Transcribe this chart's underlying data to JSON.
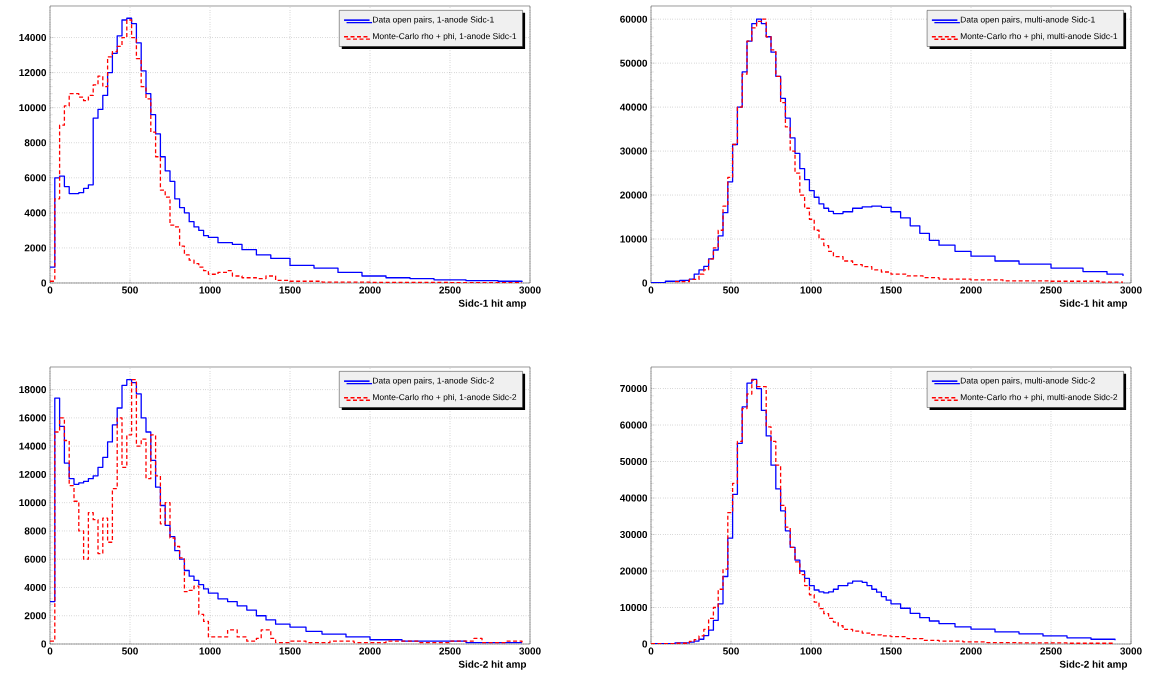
{
  "chart_data": [
    {
      "type": "step",
      "xlabel": "Sidc-1 hit amp",
      "xlim": [
        0,
        3000
      ],
      "ylim": [
        0,
        15800
      ],
      "xticks": [
        0,
        500,
        1000,
        1500,
        2000,
        2500,
        3000
      ],
      "yticks": [
        0,
        2000,
        4000,
        6000,
        8000,
        10000,
        12000,
        14000
      ],
      "grid": true,
      "legend": "top right",
      "series": [
        {
          "name": "Data open pairs, 1-anode Sidc-1",
          "color": "#0000ff",
          "line_style": "solid",
          "x": [
            0,
            30,
            60,
            90,
            120,
            150,
            180,
            210,
            240,
            270,
            300,
            330,
            360,
            390,
            420,
            450,
            480,
            510,
            540,
            570,
            600,
            630,
            660,
            690,
            720,
            750,
            780,
            810,
            840,
            870,
            900,
            930,
            960,
            990,
            1050,
            1140,
            1200,
            1290,
            1380,
            1500,
            1650,
            1800,
            1950,
            2100,
            2250,
            2400,
            2600,
            2800,
            2950
          ],
          "values": [
            900,
            6000,
            6100,
            5500,
            5100,
            5100,
            5150,
            5400,
            5600,
            9400,
            9900,
            10700,
            12000,
            13100,
            14100,
            15000,
            15100,
            14800,
            13700,
            12100,
            10800,
            9600,
            8500,
            7200,
            6400,
            5800,
            4800,
            4300,
            4000,
            3500,
            3200,
            3000,
            2700,
            2600,
            2300,
            2200,
            1900,
            1600,
            1400,
            1000,
            850,
            600,
            400,
            300,
            250,
            180,
            130,
            100,
            60
          ]
        },
        {
          "name": "Monte-Carlo rho + phi, 1-anode Sidc-1",
          "color": "#ff0000",
          "line_style": "dashed",
          "x": [
            0,
            30,
            60,
            90,
            120,
            150,
            180,
            210,
            240,
            270,
            300,
            330,
            360,
            390,
            420,
            450,
            480,
            510,
            540,
            570,
            600,
            630,
            660,
            690,
            720,
            750,
            780,
            810,
            840,
            870,
            900,
            930,
            960,
            990,
            1050,
            1110,
            1140,
            1200,
            1290,
            1350,
            1410,
            1500,
            1700,
            2000,
            2500,
            2950
          ],
          "values": [
            100,
            4800,
            9000,
            10100,
            10800,
            10800,
            10600,
            10400,
            10700,
            11300,
            11800,
            11200,
            12900,
            13200,
            13500,
            14000,
            15000,
            14000,
            12800,
            11200,
            10500,
            8600,
            7200,
            5300,
            4900,
            3300,
            3200,
            2100,
            1600,
            1300,
            1100,
            900,
            700,
            500,
            600,
            700,
            400,
            300,
            250,
            400,
            150,
            100,
            50,
            30,
            20,
            20
          ]
        }
      ]
    },
    {
      "type": "step",
      "xlabel": "Sidc-1 hit amp",
      "xlim": [
        0,
        3000
      ],
      "ylim": [
        0,
        63000
      ],
      "xticks": [
        0,
        500,
        1000,
        1500,
        2000,
        2500,
        3000
      ],
      "yticks": [
        0,
        10000,
        20000,
        30000,
        40000,
        50000,
        60000
      ],
      "grid": true,
      "legend": "top right",
      "series": [
        {
          "name": "Data open pairs, multi-anode Sidc-1",
          "color": "#0000ff",
          "line_style": "solid",
          "x": [
            0,
            90,
            180,
            240,
            270,
            300,
            330,
            360,
            390,
            420,
            450,
            480,
            510,
            540,
            570,
            600,
            630,
            660,
            690,
            720,
            750,
            780,
            810,
            840,
            870,
            900,
            930,
            960,
            990,
            1020,
            1050,
            1080,
            1110,
            1140,
            1200,
            1260,
            1320,
            1380,
            1440,
            1500,
            1560,
            1620,
            1680,
            1740,
            1800,
            1900,
            2000,
            2150,
            2300,
            2500,
            2700,
            2850,
            2950
          ],
          "values": [
            100,
            400,
            600,
            900,
            2000,
            3000,
            3800,
            5500,
            7500,
            10700,
            16000,
            23000,
            31500,
            40000,
            48000,
            55000,
            59000,
            60000,
            59000,
            56000,
            52500,
            47000,
            42000,
            37500,
            33000,
            29500,
            26000,
            23500,
            21000,
            19500,
            18000,
            17000,
            16300,
            15800,
            16200,
            17000,
            17300,
            17500,
            17200,
            16200,
            14800,
            13000,
            11300,
            9700,
            8600,
            7200,
            6100,
            5000,
            4300,
            3400,
            2600,
            2000,
            1600
          ]
        },
        {
          "name": "Monte-Carlo rho + phi, multi-anode Sidc-1",
          "color": "#ff0000",
          "line_style": "dashed",
          "x": [
            150,
            240,
            300,
            330,
            360,
            390,
            420,
            450,
            480,
            510,
            540,
            570,
            600,
            630,
            660,
            690,
            720,
            750,
            780,
            810,
            840,
            870,
            900,
            930,
            960,
            990,
            1020,
            1050,
            1080,
            1110,
            1140,
            1200,
            1260,
            1320,
            1380,
            1440,
            1500,
            1600,
            1700,
            1800,
            2000,
            2200,
            2500,
            2800,
            2950
          ],
          "values": [
            300,
            800,
            2000,
            3000,
            5500,
            8000,
            12000,
            17500,
            24000,
            31500,
            40000,
            47500,
            55000,
            58000,
            59500,
            60000,
            56000,
            53000,
            47000,
            41000,
            35500,
            30000,
            25000,
            20000,
            17000,
            14500,
            12000,
            10000,
            8500,
            7200,
            6000,
            5000,
            4200,
            3700,
            3000,
            2500,
            2000,
            1600,
            1200,
            900,
            700,
            500,
            400,
            200,
            200
          ]
        }
      ]
    },
    {
      "type": "step",
      "xlabel": "Sidc-2 hit amp",
      "xlim": [
        0,
        3000
      ],
      "ylim": [
        0,
        19600
      ],
      "xticks": [
        0,
        500,
        1000,
        1500,
        2000,
        2500,
        3000
      ],
      "yticks": [
        0,
        2000,
        4000,
        6000,
        8000,
        10000,
        12000,
        14000,
        16000,
        18000
      ],
      "grid": true,
      "legend": "top right",
      "series": [
        {
          "name": "Data open pairs, 1-anode Sidc-2",
          "color": "#0000ff",
          "line_style": "solid",
          "x": [
            0,
            30,
            60,
            90,
            120,
            150,
            180,
            210,
            240,
            270,
            300,
            330,
            360,
            390,
            420,
            450,
            480,
            510,
            540,
            570,
            600,
            630,
            660,
            690,
            720,
            750,
            780,
            810,
            840,
            870,
            900,
            930,
            960,
            990,
            1050,
            1110,
            1170,
            1230,
            1290,
            1350,
            1410,
            1500,
            1600,
            1700,
            1850,
            2000,
            2200,
            2400,
            2600,
            2800,
            2950
          ],
          "values": [
            3000,
            17400,
            15400,
            12800,
            11700,
            11300,
            11400,
            11500,
            11700,
            11900,
            12500,
            13200,
            14300,
            15500,
            16700,
            18300,
            18700,
            18500,
            17700,
            16000,
            15000,
            13000,
            11100,
            9800,
            8400,
            7600,
            6600,
            6000,
            5200,
            4800,
            4500,
            4200,
            3900,
            3600,
            3200,
            3000,
            2700,
            2400,
            2000,
            1700,
            1400,
            1200,
            900,
            700,
            500,
            300,
            200,
            200,
            100,
            100,
            100
          ]
        },
        {
          "name": "Monte-Carlo rho + phi, 1-anode Sidc-2",
          "color": "#ff0000",
          "line_style": "dashed",
          "x": [
            0,
            30,
            60,
            90,
            120,
            150,
            180,
            210,
            240,
            270,
            300,
            330,
            360,
            390,
            420,
            450,
            480,
            510,
            540,
            570,
            600,
            630,
            660,
            690,
            720,
            750,
            780,
            810,
            840,
            870,
            900,
            930,
            960,
            990,
            1050,
            1110,
            1170,
            1230,
            1290,
            1320,
            1380,
            1410,
            1500,
            1600,
            1750,
            1900,
            2100,
            2300,
            2500,
            2650,
            2700,
            2850,
            2950
          ],
          "values": [
            200,
            15000,
            16000,
            14400,
            11200,
            10100,
            8000,
            6000,
            9300,
            8800,
            6400,
            8900,
            7200,
            11000,
            16000,
            12500,
            14800,
            18700,
            14000,
            14500,
            11700,
            14800,
            11900,
            8500,
            10000,
            7500,
            6900,
            6100,
            3700,
            3800,
            4100,
            2100,
            1600,
            500,
            500,
            1000,
            500,
            200,
            400,
            1000,
            400,
            100,
            200,
            100,
            200,
            100,
            200,
            100,
            200,
            400,
            100,
            200,
            100
          ]
        }
      ]
    },
    {
      "type": "step",
      "xlabel": "Sidc-2 hit amp",
      "xlim": [
        0,
        3000
      ],
      "ylim": [
        0,
        75900
      ],
      "xticks": [
        0,
        500,
        1000,
        1500,
        2000,
        2500,
        3000
      ],
      "yticks": [
        0,
        10000,
        20000,
        30000,
        40000,
        50000,
        60000,
        70000
      ],
      "grid": true,
      "legend": "top right",
      "series": [
        {
          "name": "Data open pairs, multi-anode Sidc-2",
          "color": "#0000ff",
          "line_style": "solid",
          "x": [
            0,
            150,
            240,
            270,
            300,
            330,
            360,
            390,
            420,
            450,
            480,
            510,
            540,
            570,
            600,
            630,
            660,
            690,
            720,
            750,
            780,
            810,
            840,
            870,
            900,
            930,
            960,
            990,
            1020,
            1050,
            1080,
            1110,
            1140,
            1170,
            1230,
            1260,
            1320,
            1350,
            1380,
            1410,
            1440,
            1470,
            1500,
            1560,
            1620,
            1680,
            1740,
            1800,
            1900,
            2000,
            2150,
            2300,
            2450,
            2600,
            2750,
            2900
          ],
          "values": [
            100,
            300,
            500,
            800,
            1300,
            2300,
            3800,
            6500,
            11000,
            18500,
            29000,
            41000,
            55000,
            65000,
            71500,
            72500,
            70000,
            64000,
            57000,
            49000,
            42500,
            36500,
            31000,
            26500,
            23000,
            20000,
            18000,
            16000,
            14800,
            14300,
            14000,
            14300,
            15000,
            16000,
            16700,
            17200,
            16900,
            16000,
            15000,
            14200,
            13000,
            12000,
            11000,
            9800,
            8400,
            7200,
            6300,
            5600,
            4700,
            4100,
            3300,
            2800,
            2200,
            1700,
            1300,
            1000
          ]
        },
        {
          "name": "Monte-Carlo rho + phi, multi-anode Sidc-2",
          "color": "#ff0000",
          "line_style": "dashed",
          "x": [
            0,
            150,
            240,
            270,
            300,
            330,
            360,
            390,
            420,
            450,
            480,
            510,
            540,
            570,
            600,
            630,
            660,
            690,
            720,
            750,
            780,
            810,
            840,
            870,
            900,
            930,
            960,
            990,
            1020,
            1050,
            1080,
            1110,
            1140,
            1170,
            1200,
            1260,
            1320,
            1380,
            1440,
            1500,
            1600,
            1700,
            1800,
            1950,
            2100,
            2300,
            2600,
            2900
          ],
          "values": [
            100,
            200,
            700,
            1200,
            2200,
            4000,
            7000,
            10000,
            15000,
            20500,
            36000,
            44000,
            55500,
            64500,
            68500,
            72300,
            70500,
            70500,
            59500,
            55500,
            49000,
            38000,
            32000,
            26500,
            22500,
            19000,
            16000,
            13500,
            11500,
            9700,
            8300,
            7000,
            6000,
            5000,
            4000,
            3500,
            3000,
            2500,
            2200,
            2000,
            1500,
            1000,
            800,
            600,
            400,
            300,
            200,
            200
          ]
        }
      ]
    }
  ]
}
